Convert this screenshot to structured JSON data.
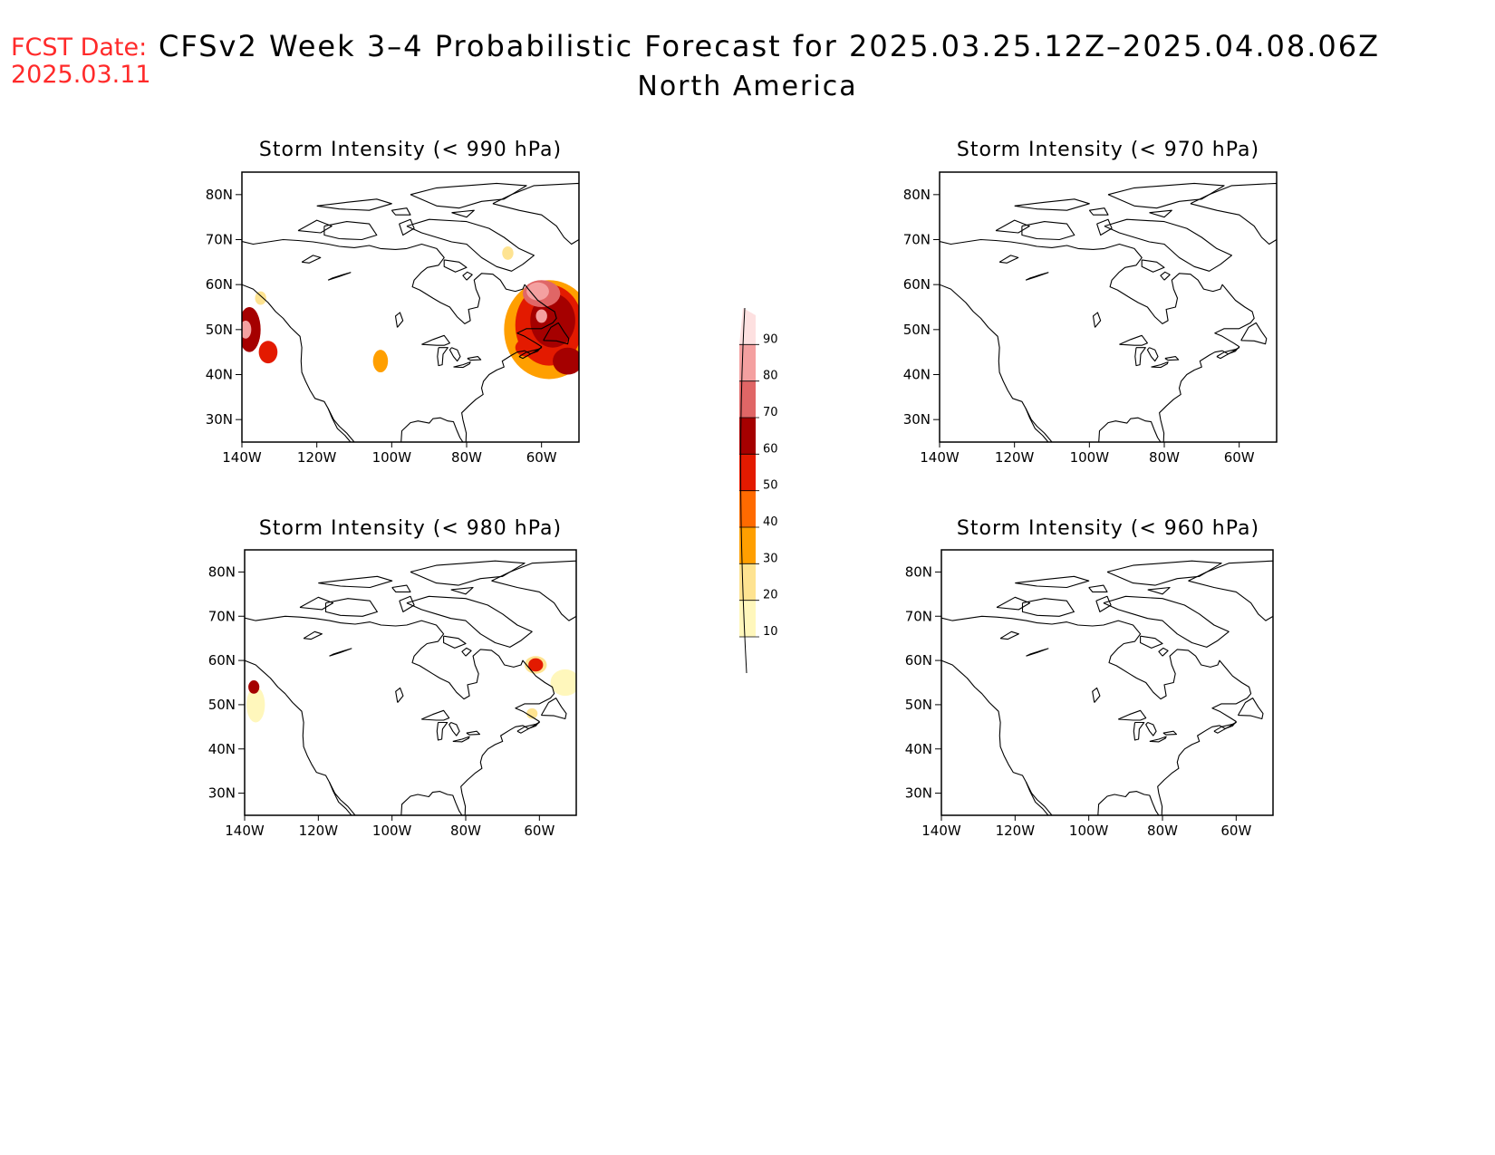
{
  "header": {
    "fcst_label": "FCST Date:",
    "fcst_date": "2025.03.11",
    "title": "CFSv2 Week 3–4 Probabilistic Forecast for 2025.03.25.12Z–2025.04.08.06Z",
    "region": "North America"
  },
  "axes": {
    "lat_labels": [
      "80N",
      "70N",
      "60N",
      "50N",
      "40N",
      "30N"
    ],
    "lat_values": [
      80,
      70,
      60,
      50,
      40,
      30
    ],
    "lon_labels": [
      "140W",
      "120W",
      "100W",
      "80W",
      "60W"
    ],
    "lon_values": [
      -140,
      -120,
      -100,
      -80,
      -60
    ],
    "lat_range": [
      25,
      85
    ],
    "lon_range": [
      -140,
      -50
    ]
  },
  "panels": [
    {
      "id": "p990",
      "title": "Storm Intensity (< 990 hPa)",
      "blobs": [
        {
          "lon": -138,
          "lat": 50,
          "rx": 3,
          "ry": 5,
          "level": 60
        },
        {
          "lon": -139,
          "lat": 50,
          "rx": 1.5,
          "ry": 2,
          "level": 80
        },
        {
          "lon": -133,
          "lat": 45,
          "rx": 2.5,
          "ry": 2.5,
          "level": 50
        },
        {
          "lon": -135,
          "lat": 57,
          "rx": 1.5,
          "ry": 1.5,
          "level": 20
        },
        {
          "lon": -103,
          "lat": 43,
          "rx": 2,
          "ry": 2.5,
          "level": 30
        },
        {
          "lon": -69,
          "lat": 67,
          "rx": 1.5,
          "ry": 1.5,
          "level": 20
        },
        {
          "lon": -58,
          "lat": 50,
          "rx": 12,
          "ry": 11,
          "level": 30
        },
        {
          "lon": -58,
          "lat": 51,
          "rx": 9,
          "ry": 9,
          "level": 50
        },
        {
          "lon": -57,
          "lat": 52,
          "rx": 6,
          "ry": 6,
          "level": 60
        },
        {
          "lon": -60,
          "lat": 58,
          "rx": 5,
          "ry": 3,
          "level": 70
        },
        {
          "lon": -61,
          "lat": 58.5,
          "rx": 3,
          "ry": 2,
          "level": 80
        },
        {
          "lon": -60,
          "lat": 53,
          "rx": 1.5,
          "ry": 1.5,
          "level": 80
        },
        {
          "lon": -53,
          "lat": 43,
          "rx": 4,
          "ry": 3,
          "level": 60
        },
        {
          "lon": -64,
          "lat": 46,
          "rx": 3,
          "ry": 2,
          "level": 50
        }
      ]
    },
    {
      "id": "p970",
      "title": "Storm Intensity (< 970 hPa)",
      "blobs": []
    },
    {
      "id": "p980",
      "title": "Storm Intensity (< 980 hPa)",
      "blobs": [
        {
          "lon": -137,
          "lat": 50,
          "rx": 2.5,
          "ry": 4,
          "level": 10
        },
        {
          "lon": -137.5,
          "lat": 54,
          "rx": 1.5,
          "ry": 1.5,
          "level": 60
        },
        {
          "lon": -61,
          "lat": 59,
          "rx": 3,
          "ry": 2,
          "level": 20
        },
        {
          "lon": -61,
          "lat": 59,
          "rx": 2,
          "ry": 1.5,
          "level": 50
        },
        {
          "lon": -53,
          "lat": 55,
          "rx": 4,
          "ry": 3,
          "level": 10
        },
        {
          "lon": -62,
          "lat": 48,
          "rx": 1.5,
          "ry": 1.2,
          "level": 20
        }
      ]
    },
    {
      "id": "p960",
      "title": "Storm Intensity (< 960 hPa)",
      "blobs": []
    }
  ],
  "colorbar": {
    "levels": [
      10,
      20,
      30,
      40,
      50,
      60,
      70,
      80,
      90
    ],
    "labels": [
      "10",
      "20",
      "30",
      "40",
      "50",
      "60",
      "70",
      "80",
      "90"
    ],
    "colors": [
      "#fff7bc",
      "#fee391",
      "#ff9f00",
      "#ff6a00",
      "#e31a00",
      "#a50000",
      "#e06666",
      "#f4a0a0",
      "#fde0e0"
    ]
  }
}
